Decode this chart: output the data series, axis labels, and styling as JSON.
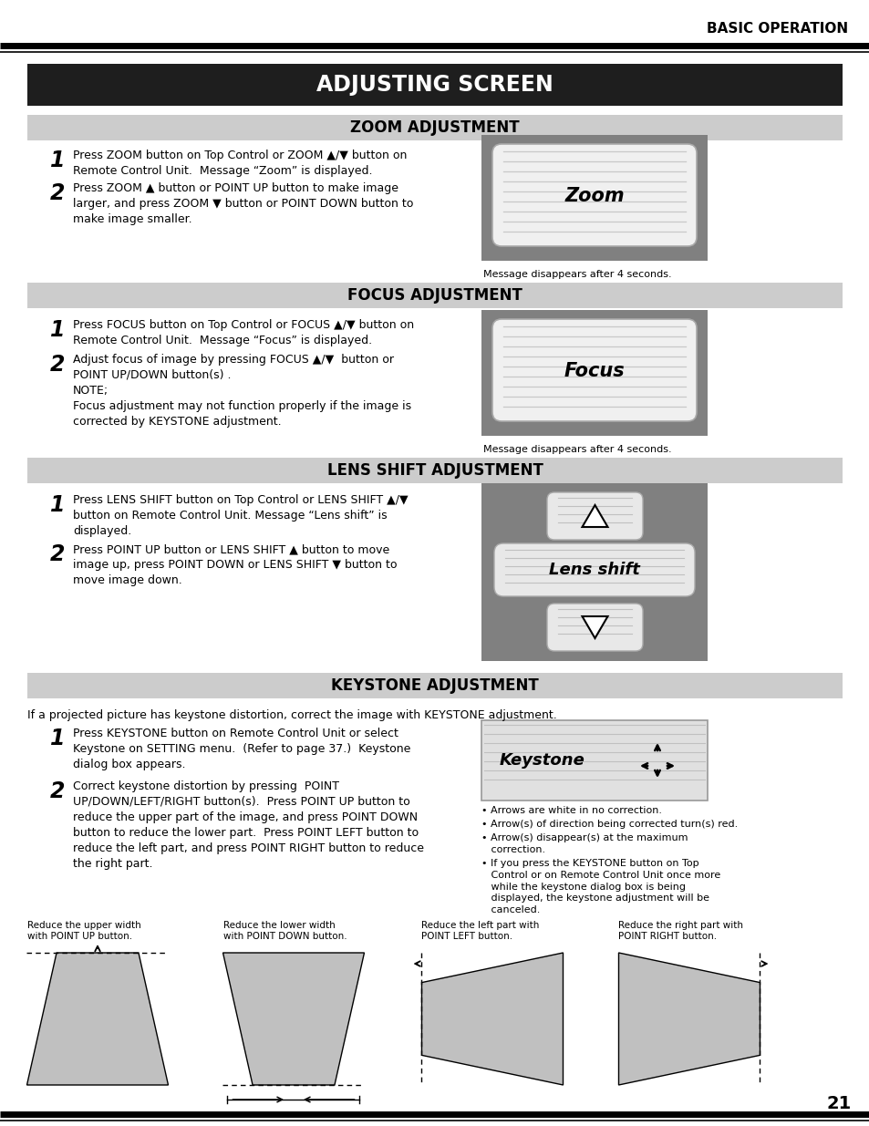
{
  "page_bg": "#ffffff",
  "header_text": "BASIC OPERATION",
  "main_title": "ADJUSTING SCREEN",
  "main_title_bg": "#1e1e1e",
  "main_title_color": "#ffffff",
  "section_bg": "#cccccc",
  "page_number": "21",
  "intro_text": "If a projected picture has keystone distortion, correct the image with KEYSTONE adjustment.",
  "zoom_items": [
    "Press ZOOM button on Top Control or ZOOM ▲/▼ button on\nRemote Control Unit.  Message “Zoom” is displayed.",
    "Press ZOOM ▲ button or POINT UP button to make image\nlarger, and press ZOOM ▼ button or POINT DOWN button to\nmake image smaller."
  ],
  "focus_items": [
    "Press FOCUS button on Top Control or FOCUS ▲/▼ button on\nRemote Control Unit.  Message “Focus” is displayed.",
    "Adjust focus of image by pressing FOCUS ▲/▼  button or\nPOINT UP/DOWN button(s) ."
  ],
  "focus_note": "NOTE;\nFocus adjustment may not function properly if the image is\ncorrected by KEYSTONE adjustment.",
  "lens_items": [
    "Press LENS SHIFT button on Top Control or LENS SHIFT ▲/▼\nbutton on Remote Control Unit. Message “Lens shift” is\ndisplayed.",
    "Press POINT UP button or LENS SHIFT ▲ button to move\nimage up, press POINT DOWN or LENS SHIFT ▼ button to\nmove image down."
  ],
  "keystone_items": [
    "Press KEYSTONE button on Remote Control Unit or select\nKeystone on SETTING menu.  (Refer to page 37.)  Keystone\ndialog box appears.",
    "Correct keystone distortion by pressing  POINT\nUP/DOWN/LEFT/RIGHT button(s).  Press POINT UP button to\nreduce the upper part of the image, and press POINT DOWN\nbutton to reduce the lower part.  Press POINT LEFT button to\nreduce the left part, and press POINT RIGHT button to reduce\nthe right part."
  ],
  "keystone_bullets": [
    "• Arrows are white in no correction.",
    "• Arrow(s) of direction being corrected turn(s) red.",
    "• Arrow(s) disappear(s) at the maximum\n   correction.",
    "• If you press the KEYSTONE button on Top\n   Control or on Remote Control Unit once more\n   while the keystone dialog box is being\n   displayed, the keystone adjustment will be\n   canceled."
  ],
  "keystone_captions": [
    "Reduce the upper width\nwith POINT UP button.",
    "Reduce the lower width\nwith POINT DOWN button.",
    "Reduce the left part with\nPOINT LEFT button.",
    "Reduce the right part with\nPOINT RIGHT button."
  ],
  "msg_caption": "Message disappears after 4 seconds."
}
